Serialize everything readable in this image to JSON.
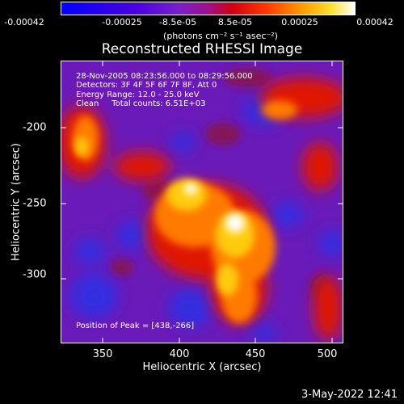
{
  "colorbar": {
    "ticks": [
      "-0.00042",
      "-0.00025",
      "-8.5e-05",
      "8.5e-05",
      "0.00025",
      "0.00042"
    ],
    "unit_label": "(photons cm⁻² s⁻¹ asec⁻²)",
    "colors": [
      "#0000ff",
      "#5a00d8",
      "#8a26c0",
      "#c00030",
      "#ff2400",
      "#ff8a00",
      "#ffd000",
      "#ffffff"
    ]
  },
  "title": "Reconstructed RHESSI Image",
  "info": {
    "line1": "28-Nov-2005 08:23:56.000 to 08:29:56.000",
    "line2": "Detectors: 3F 4F 5F 6F 7F 8F, Att 0",
    "line3": "Energy Range: 12.0 - 25.0 keV",
    "line4": "Clean     Total counts: 6.51E+03",
    "peak": "Position of Peak = [438,-266]"
  },
  "x_axis": {
    "label": "Heliocentric X (arcsec)",
    "ticks": [
      "350",
      "400",
      "450",
      "500"
    ]
  },
  "y_axis": {
    "label": "Heliocentric Y (arcsec)",
    "ticks": [
      "-200",
      "-250",
      "-300"
    ]
  },
  "datestamp": "3-May-2022 12:41"
}
